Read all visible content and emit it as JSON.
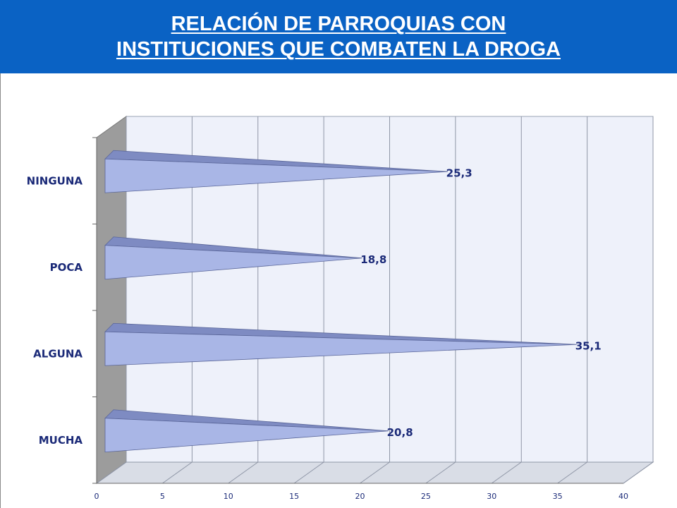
{
  "header": {
    "title_line1": "RELACIÓN DE PARROQUIAS CON",
    "title_line2": "INSTITUCIONES QUE COMBATEN LA DROGA"
  },
  "colors": {
    "header_bg": "#0a62c4",
    "bar_front": "#a9b6e6",
    "bar_top": "#7e8bc2",
    "wall": "#eef1fa",
    "text": "#1b2a78"
  },
  "chart_data": {
    "type": "bar",
    "orientation": "horizontal",
    "style": "3d-cone",
    "title": "RELACIÓN DE PARROQUIAS CON INSTITUCIONES QUE COMBATEN LA DROGA",
    "categories": [
      "NINGUNA",
      "POCA",
      "ALGUNA",
      "MUCHA"
    ],
    "values": [
      25.3,
      18.8,
      35.1,
      20.8
    ],
    "value_labels": [
      "25,3",
      "18,8",
      "35,1",
      "20,8"
    ],
    "xlim": [
      0,
      40
    ],
    "x_ticks": [
      "0",
      "5",
      "10",
      "15",
      "20",
      "25",
      "30",
      "35",
      "40"
    ],
    "grid": true,
    "legend": "none"
  }
}
